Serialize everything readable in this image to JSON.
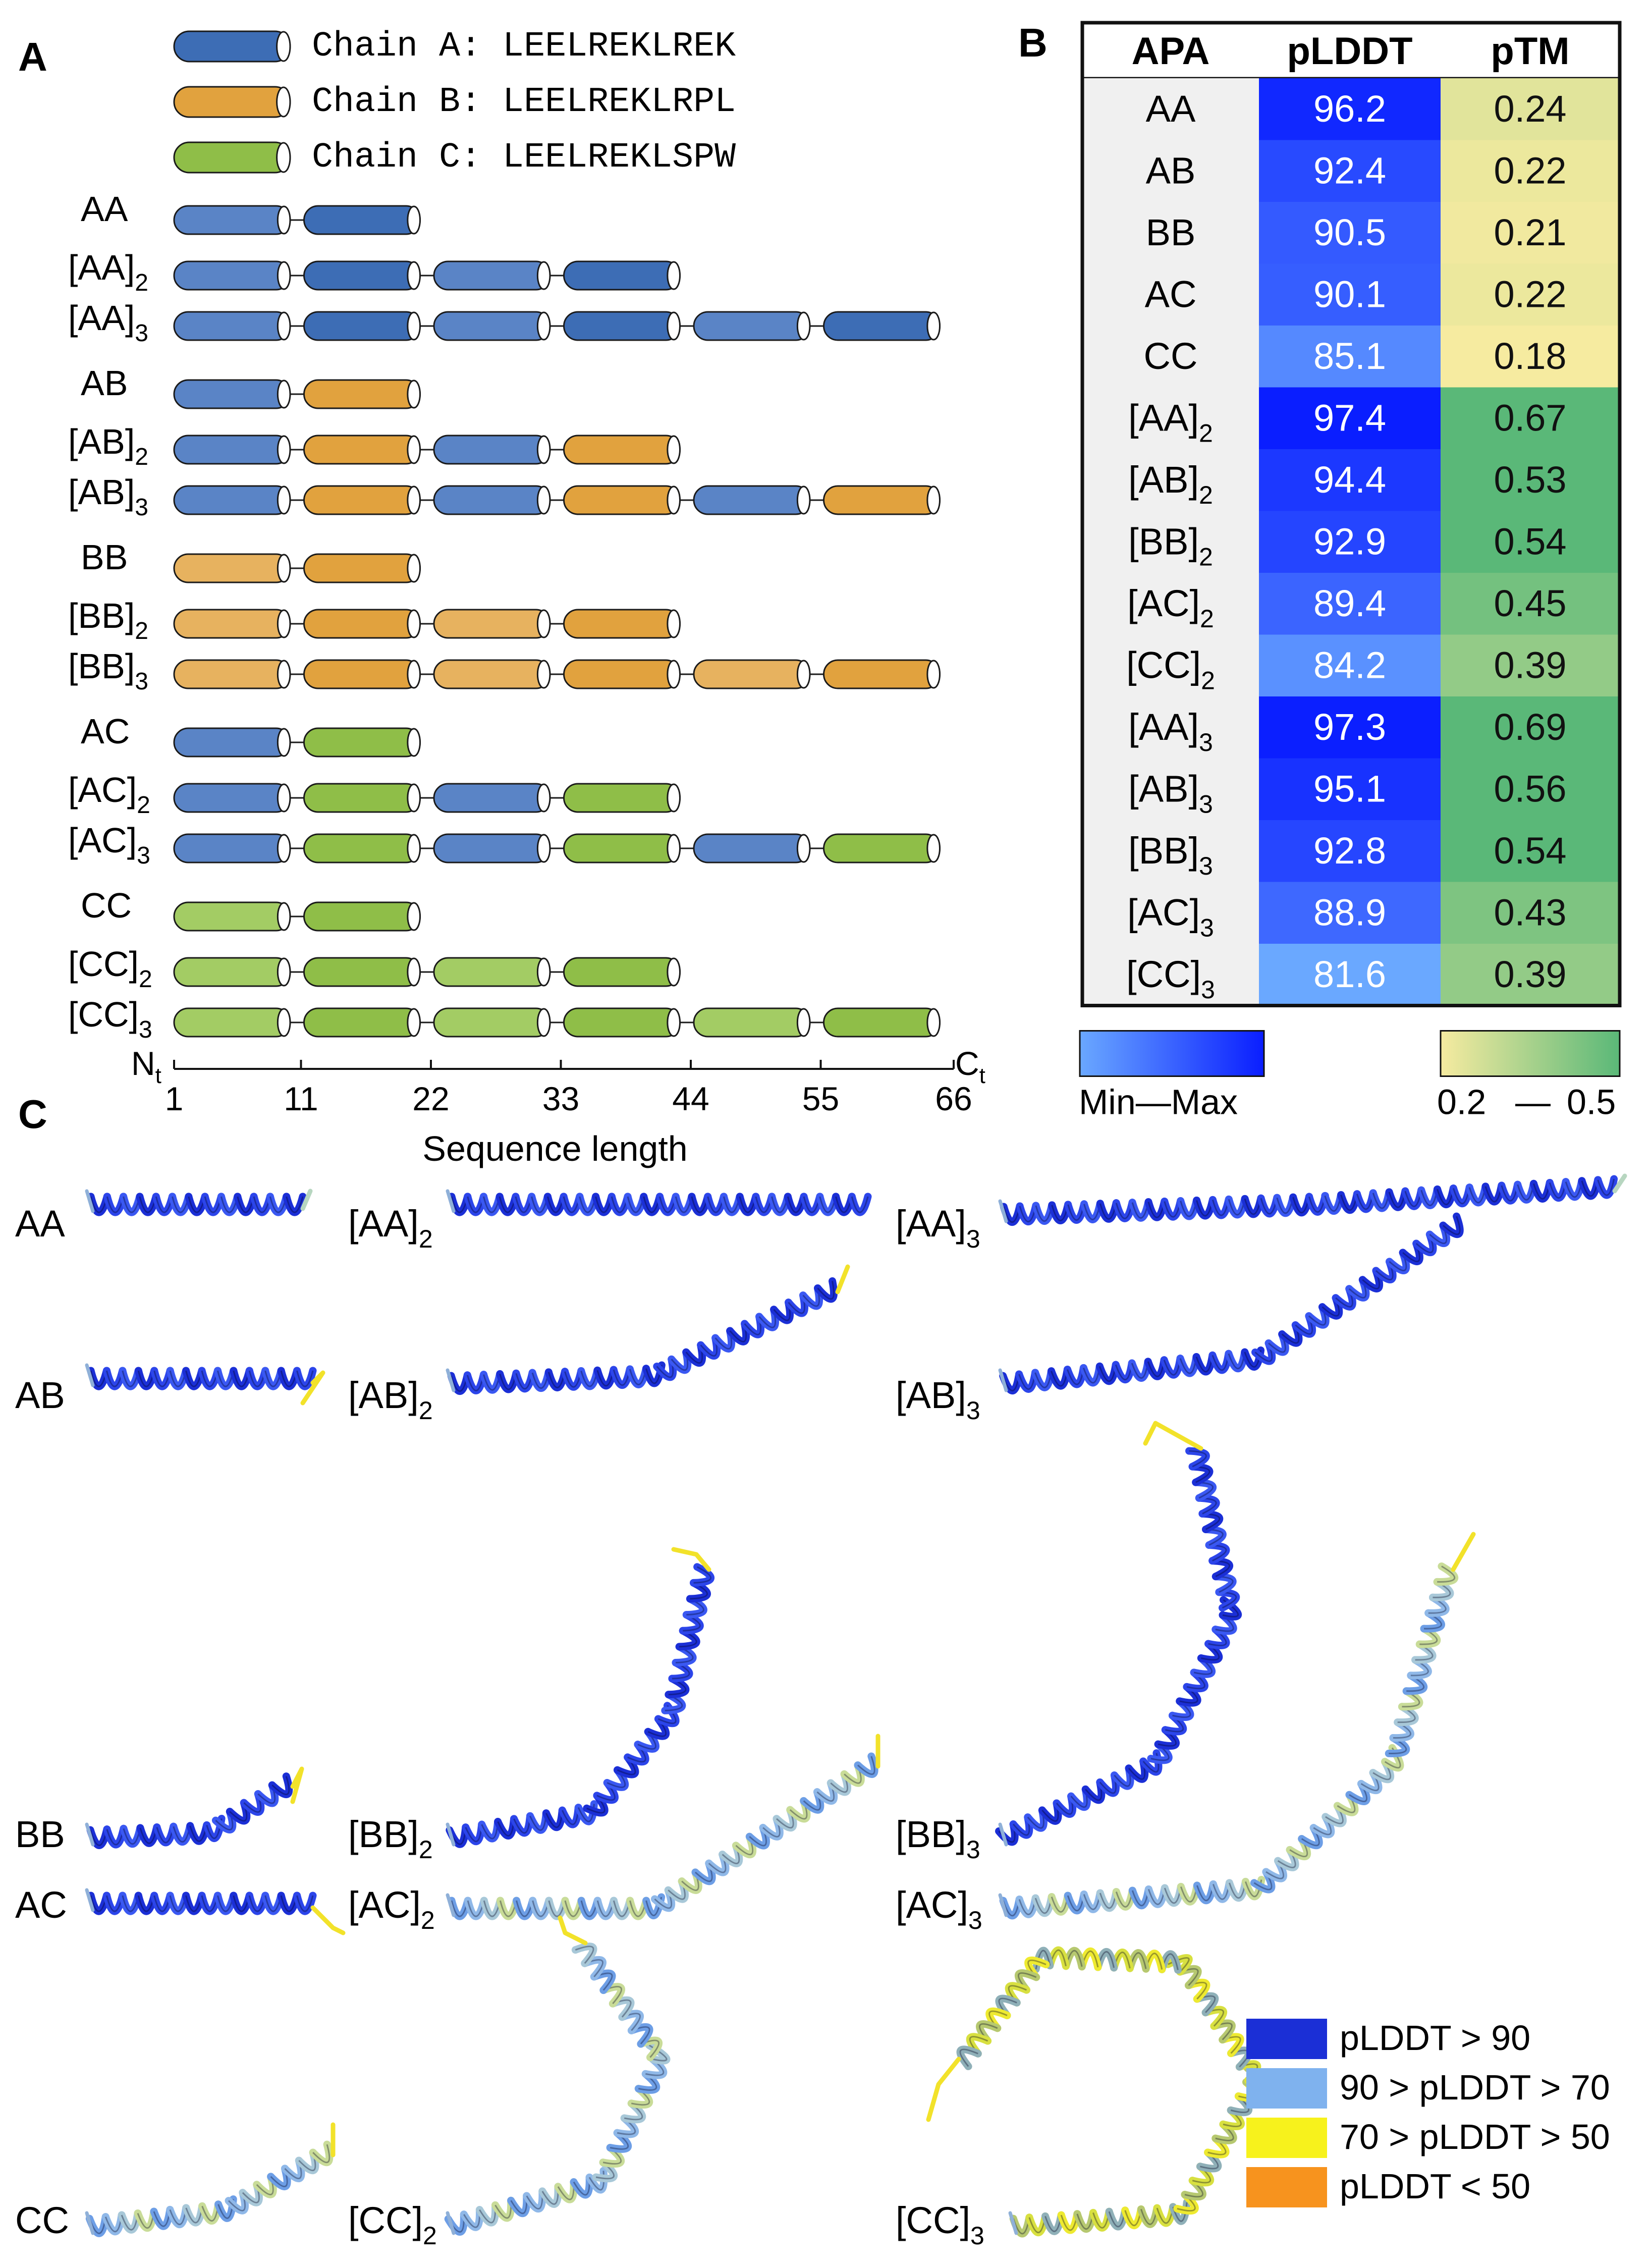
{
  "panels": {
    "a": "A",
    "b": "B",
    "c": "C"
  },
  "legend_chains": [
    {
      "id": "A",
      "text": "Chain A: LEELREKLREK"
    },
    {
      "id": "B",
      "text": "Chain B: LEELREKLRPL"
    },
    {
      "id": "C",
      "text": "Chain C: LEELREKLSPW"
    }
  ],
  "colors": {
    "chainA": [
      "#5a84c6",
      "#3d6db5"
    ],
    "chainB": [
      "#e7b25f",
      "#e1a23e"
    ],
    "chainC": [
      "#a3cc64",
      "#8fbe48"
    ],
    "plddt_min": "#6aa8ff",
    "plddt_max": "#0a1eff",
    "ptm_min": "#f6eba0",
    "ptm_max": "#5ab878",
    "plddt_gt90": "#1b2fd6",
    "plddt_70_90": "#7fb2ee",
    "plddt_50_70": "#f7f21c",
    "plddt_lt50": "#f7931e"
  },
  "constructs": [
    {
      "group": "AA",
      "rows": [
        {
          "label": "AA",
          "base": "",
          "sub": "",
          "chains": [
            "A",
            "A"
          ]
        },
        {
          "label": "[AA]",
          "base": "[AA]",
          "sub": "2",
          "chains": [
            "A",
            "A",
            "A",
            "A"
          ]
        },
        {
          "label": "[AA]",
          "base": "[AA]",
          "sub": "3",
          "chains": [
            "A",
            "A",
            "A",
            "A",
            "A",
            "A"
          ]
        }
      ]
    },
    {
      "group": "AB",
      "rows": [
        {
          "label": "AB",
          "base": "",
          "sub": "",
          "chains": [
            "A",
            "B"
          ]
        },
        {
          "label": "[AB]",
          "base": "[AB]",
          "sub": "2",
          "chains": [
            "A",
            "B",
            "A",
            "B"
          ]
        },
        {
          "label": "[AB]",
          "base": "[AB]",
          "sub": "3",
          "chains": [
            "A",
            "B",
            "A",
            "B",
            "A",
            "B"
          ]
        }
      ]
    },
    {
      "group": "BB",
      "rows": [
        {
          "label": "BB",
          "base": "",
          "sub": "",
          "chains": [
            "B",
            "B"
          ]
        },
        {
          "label": "[BB]",
          "base": "[BB]",
          "sub": "2",
          "chains": [
            "B",
            "B",
            "B",
            "B"
          ]
        },
        {
          "label": "[BB]",
          "base": "[BB]",
          "sub": "3",
          "chains": [
            "B",
            "B",
            "B",
            "B",
            "B",
            "B"
          ]
        }
      ]
    },
    {
      "group": "AC",
      "rows": [
        {
          "label": "AC",
          "base": "",
          "sub": "",
          "chains": [
            "A",
            "C"
          ]
        },
        {
          "label": "[AC]",
          "base": "[AC]",
          "sub": "2",
          "chains": [
            "A",
            "C",
            "A",
            "C"
          ]
        },
        {
          "label": "[AC]",
          "base": "[AC]",
          "sub": "3",
          "chains": [
            "A",
            "C",
            "A",
            "C",
            "A",
            "C"
          ]
        }
      ]
    },
    {
      "group": "CC",
      "rows": [
        {
          "label": "CC",
          "base": "",
          "sub": "",
          "chains": [
            "C",
            "C"
          ]
        },
        {
          "label": "[CC]",
          "base": "[CC]",
          "sub": "2",
          "chains": [
            "C",
            "C",
            "C",
            "C"
          ]
        },
        {
          "label": "[CC]",
          "base": "[CC]",
          "sub": "3",
          "chains": [
            "C",
            "C",
            "C",
            "C",
            "C",
            "C"
          ]
        }
      ]
    }
  ],
  "axis": {
    "ticks": [
      "1",
      "11",
      "22",
      "33",
      "44",
      "55",
      "66"
    ],
    "n_label": "N",
    "c_label": "C",
    "terminal_sub": "t",
    "title": "Sequence length"
  },
  "chart_data": {
    "type": "table",
    "title": "",
    "columns": [
      "APA",
      "pLDDT",
      "pTM"
    ],
    "rows": [
      {
        "apa": "AA",
        "apa_base": "AA",
        "apa_sub": "",
        "plddt": 96.2,
        "plddt_text": "96.2",
        "ptm": 0.24,
        "ptm_text": "0.24"
      },
      {
        "apa": "AB",
        "apa_base": "AB",
        "apa_sub": "",
        "plddt": 92.4,
        "plddt_text": "92.4",
        "ptm": 0.22,
        "ptm_text": "0.22"
      },
      {
        "apa": "BB",
        "apa_base": "BB",
        "apa_sub": "",
        "plddt": 90.5,
        "plddt_text": "90.5",
        "ptm": 0.21,
        "ptm_text": "0.21"
      },
      {
        "apa": "AC",
        "apa_base": "AC",
        "apa_sub": "",
        "plddt": 90.1,
        "plddt_text": "90.1",
        "ptm": 0.22,
        "ptm_text": "0.22"
      },
      {
        "apa": "CC",
        "apa_base": "CC",
        "apa_sub": "",
        "plddt": 85.1,
        "plddt_text": "85.1",
        "ptm": 0.18,
        "ptm_text": "0.18"
      },
      {
        "apa": "[AA]2",
        "apa_base": "[AA]",
        "apa_sub": "2",
        "plddt": 97.4,
        "plddt_text": "97.4",
        "ptm": 0.67,
        "ptm_text": "0.67"
      },
      {
        "apa": "[AB]2",
        "apa_base": "[AB]",
        "apa_sub": "2",
        "plddt": 94.4,
        "plddt_text": "94.4",
        "ptm": 0.53,
        "ptm_text": "0.53"
      },
      {
        "apa": "[BB]2",
        "apa_base": "[BB]",
        "apa_sub": "2",
        "plddt": 92.9,
        "plddt_text": "92.9",
        "ptm": 0.54,
        "ptm_text": "0.54"
      },
      {
        "apa": "[AC]2",
        "apa_base": "[AC]",
        "apa_sub": "2",
        "plddt": 89.4,
        "plddt_text": "89.4",
        "ptm": 0.45,
        "ptm_text": "0.45"
      },
      {
        "apa": "[CC]2",
        "apa_base": "[CC]",
        "apa_sub": "2",
        "plddt": 84.2,
        "plddt_text": "84.2",
        "ptm": 0.39,
        "ptm_text": "0.39"
      },
      {
        "apa": "[AA]3",
        "apa_base": "[AA]",
        "apa_sub": "3",
        "plddt": 97.3,
        "plddt_text": "97.3",
        "ptm": 0.69,
        "ptm_text": "0.69"
      },
      {
        "apa": "[AB]3",
        "apa_base": "[AB]",
        "apa_sub": "3",
        "plddt": 95.1,
        "plddt_text": "95.1",
        "ptm": 0.56,
        "ptm_text": "0.56"
      },
      {
        "apa": "[BB]3",
        "apa_base": "[BB]",
        "apa_sub": "3",
        "plddt": 92.8,
        "plddt_text": "92.8",
        "ptm": 0.54,
        "ptm_text": "0.54"
      },
      {
        "apa": "[AC]3",
        "apa_base": "[AC]",
        "apa_sub": "3",
        "plddt": 88.9,
        "plddt_text": "88.9",
        "ptm": 0.43,
        "ptm_text": "0.43"
      },
      {
        "apa": "[CC]3",
        "apa_base": "[CC]",
        "apa_sub": "3",
        "plddt": 81.6,
        "plddt_text": "81.6",
        "ptm": 0.39,
        "ptm_text": "0.39"
      }
    ],
    "plddt_scale": {
      "min": 81.6,
      "max": 97.4,
      "label": "Min—Max"
    },
    "ptm_scale": {
      "min": 0.2,
      "max": 0.5,
      "label_min": "0.2",
      "label_dash": "—",
      "label_max": "0.5"
    }
  },
  "structures": [
    {
      "id": "AA",
      "base": "AA",
      "sub": "",
      "shape": "straight",
      "len": 1,
      "conf": "high",
      "tail": "low"
    },
    {
      "id": "[AA]2",
      "base": "[AA]",
      "sub": "2",
      "shape": "straight",
      "len": 2,
      "conf": "high",
      "tail": "none"
    },
    {
      "id": "[AA]3",
      "base": "[AA]",
      "sub": "3",
      "shape": "long",
      "len": 3,
      "conf": "high",
      "tail": "low"
    },
    {
      "id": "AB",
      "base": "AB",
      "sub": "",
      "shape": "straight",
      "len": 1,
      "conf": "high",
      "tail": "vlow"
    },
    {
      "id": "[AB]2",
      "base": "[AB]",
      "sub": "2",
      "shape": "curve",
      "len": 2,
      "conf": "high",
      "tail": "vlow"
    },
    {
      "id": "[AB]3",
      "base": "[AB]",
      "sub": "3",
      "shape": "curve",
      "len": 3,
      "conf": "high",
      "tail": "none"
    },
    {
      "id": "BB",
      "base": "BB",
      "sub": "",
      "shape": "curve",
      "len": 1,
      "conf": "high",
      "tail": "vlow"
    },
    {
      "id": "[BB]2",
      "base": "[BB]",
      "sub": "2",
      "shape": "vertical",
      "len": 2,
      "conf": "high",
      "tail": "vlow"
    },
    {
      "id": "[BB]3",
      "base": "[BB]",
      "sub": "3",
      "shape": "vertical",
      "len": 3,
      "conf": "high",
      "tail": "vlow"
    },
    {
      "id": "AC",
      "base": "AC",
      "sub": "",
      "shape": "straight",
      "len": 1,
      "conf": "high",
      "tail": "vlow"
    },
    {
      "id": "[AC]2",
      "base": "[AC]",
      "sub": "2",
      "shape": "curve",
      "len": 2,
      "conf": "mid",
      "tail": "vlow"
    },
    {
      "id": "[AC]3",
      "base": "[AC]",
      "sub": "3",
      "shape": "vertical",
      "len": 3,
      "conf": "mid",
      "tail": "vlow"
    },
    {
      "id": "CC",
      "base": "CC",
      "sub": "",
      "shape": "curve",
      "len": 1,
      "conf": "mid",
      "tail": "vlow"
    },
    {
      "id": "[CC]2",
      "base": "[CC]",
      "sub": "2",
      "shape": "vertical",
      "len": 2,
      "conf": "mid",
      "tail": "vlow"
    },
    {
      "id": "[CC]3",
      "base": "[CC]",
      "sub": "3",
      "shape": "circle",
      "len": 3,
      "conf": "low",
      "tail": "vlow"
    }
  ],
  "plddt_legend": [
    {
      "label": "pLDDT > 90",
      "color": "#1b2fd6"
    },
    {
      "label": "90 > pLDDT > 70",
      "color": "#7fb2ee"
    },
    {
      "label": "70 > pLDDT > 50",
      "color": "#f7f21c"
    },
    {
      "label": "pLDDT < 50",
      "color": "#f7931e"
    }
  ]
}
